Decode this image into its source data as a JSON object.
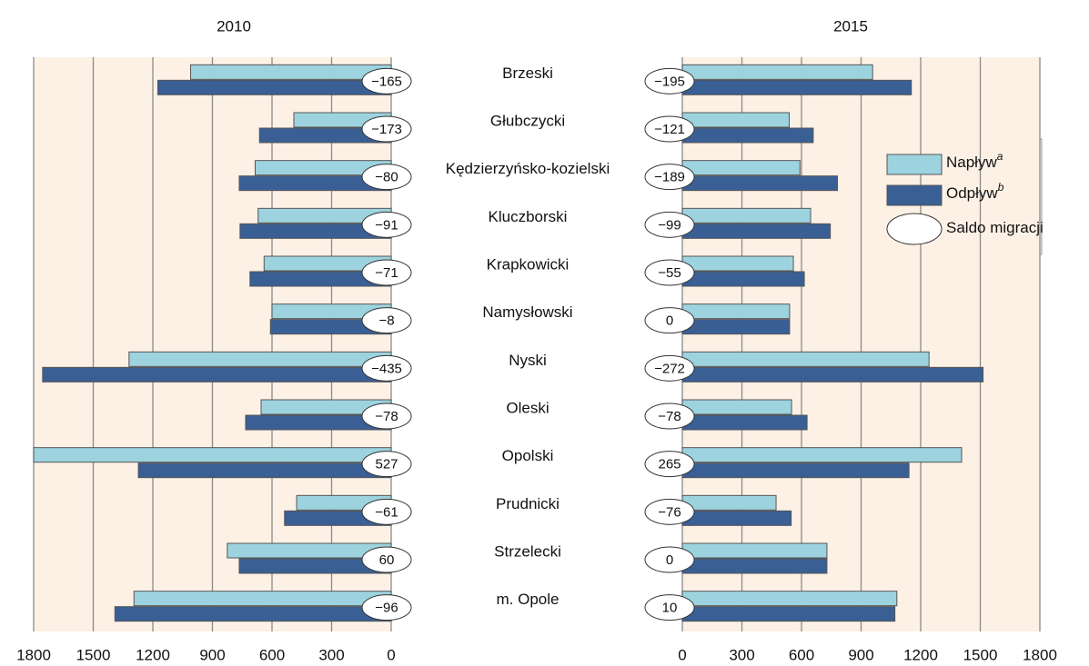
{
  "chart_data": [
    {
      "type": "bar",
      "orientation": "horizontal",
      "title": "2010",
      "reversed": true,
      "categories": [
        "Brzeski",
        "Głubczycki",
        "Kędzierzyńsko-kozielski",
        "Kluczborski",
        "Krapkowicki",
        "Namysłowski",
        "Nyski",
        "Oleski",
        "Opolski",
        "Prudnicki",
        "Strzelecki",
        "m. Opole"
      ],
      "xlim": [
        0,
        1800
      ],
      "xticks": [
        0,
        300,
        600,
        900,
        1200,
        1500,
        1800
      ],
      "grid": true,
      "series": [
        {
          "name": "Napływ",
          "name_note": "a",
          "color": "#9dd3df",
          "values": [
            1010,
            490,
            685,
            670,
            640,
            600,
            1320,
            655,
            1800,
            476,
            825,
            1295
          ]
        },
        {
          "name": "Odpływ",
          "name_note": "b",
          "color": "#3a5f95",
          "values": [
            1175,
            663,
            765,
            761,
            711,
            608,
            1755,
            733,
            1273,
            537,
            765,
            1391
          ]
        },
        {
          "name": "Saldo migracji",
          "color": "#ffffff",
          "values": [
            -165,
            -173,
            -80,
            -91,
            -71,
            -8,
            -435,
            -78,
            527,
            -61,
            60,
            -96
          ],
          "value_labels": [
            "−165",
            "−173",
            "−80",
            "−91",
            "−71",
            "−8",
            "−435",
            "−78",
            "527",
            "−61",
            "60",
            "−96"
          ]
        }
      ]
    },
    {
      "type": "bar",
      "orientation": "horizontal",
      "title": "2015",
      "reversed": false,
      "xlim": [
        0,
        1800
      ],
      "xticks": [
        0,
        300,
        600,
        900,
        1200,
        1500,
        1800
      ],
      "grid": true,
      "series": [
        {
          "color": "#9dd3df",
          "values": [
            958,
            538,
            592,
            646,
            559,
            540,
            1242,
            550,
            1406,
            472,
            728,
            1080
          ]
        },
        {
          "color": "#3a5f95",
          "values": [
            1153,
            659,
            781,
            745,
            614,
            540,
            1514,
            628,
            1141,
            548,
            728,
            1070
          ]
        },
        {
          "color": "#ffffff",
          "values": [
            -195,
            -121,
            -189,
            -99,
            -55,
            0,
            -272,
            -78,
            265,
            -76,
            0,
            10
          ],
          "value_labels": [
            "−195",
            "−121",
            "−189",
            "−99",
            "−55",
            "0",
            "−272",
            "−78",
            "265",
            "−76",
            "0",
            "10"
          ]
        }
      ]
    }
  ]
}
